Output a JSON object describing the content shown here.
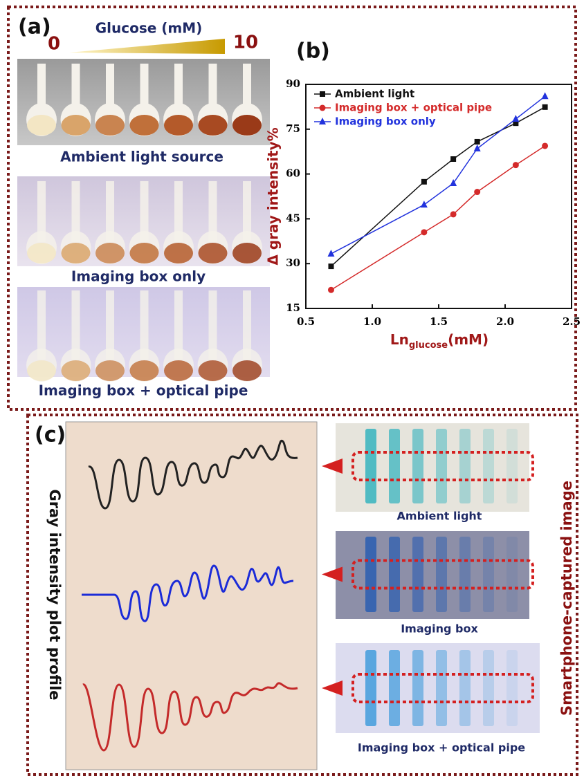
{
  "panel_a": {
    "label": "(a)",
    "gradient_title": "Glucose (mM)",
    "gradient_start": "0",
    "gradient_end": "10",
    "captions": [
      "Ambient light source",
      "Imaging box only",
      "Imaging box + optical pipe"
    ]
  },
  "chart_data": {
    "type": "line",
    "panel_label": "(b)",
    "ylabel": "Δ gray intensity%",
    "xlabel": {
      "main": "Ln",
      "sub": "glucose",
      "unit": "(mM)"
    },
    "x": [
      0.69,
      1.39,
      1.61,
      1.79,
      2.08,
      2.3
    ],
    "series": [
      {
        "name": "Ambient light",
        "color": "#111111",
        "marker": "square",
        "values": [
          29.1,
          57.4,
          65,
          70.8,
          77,
          82.4
        ]
      },
      {
        "name": "Imaging box + optical pipe",
        "color": "#d42a2a",
        "marker": "circle",
        "values": [
          21.2,
          40.5,
          46.5,
          54,
          63,
          69.4
        ]
      },
      {
        "name": "Imaging box only",
        "color": "#2233dd",
        "marker": "triangle",
        "values": [
          33.3,
          49.7,
          56.9,
          68.5,
          78.4,
          86
        ]
      }
    ],
    "xlim": [
      0.5,
      2.5
    ],
    "ylim": [
      15,
      90
    ],
    "xticks": [
      0.5,
      {
        "value": 1,
        "label": "1.0"
      },
      1.5,
      {
        "value": 2,
        "label": "2.0"
      },
      2.5
    ],
    "yticks": [
      15,
      30,
      45,
      60,
      75,
      90
    ],
    "legend": "top-left"
  },
  "panel_c": {
    "label": "(c)",
    "left_title": "Gray intensity plot profile",
    "right_title": "Smartphone-captured image",
    "captions": [
      "Ambient light",
      "Imaging box",
      "Imaging box + optical pipe"
    ]
  }
}
